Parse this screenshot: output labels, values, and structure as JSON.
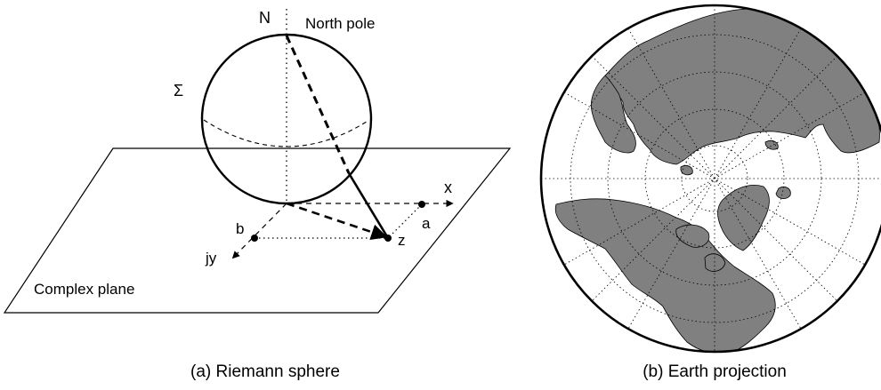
{
  "panel_a": {
    "label_N": "N",
    "label_north_pole": "North pole",
    "label_sigma": "Σ",
    "label_x": "x",
    "label_jy": "jy",
    "label_a": "a",
    "label_b": "b",
    "label_z": "z",
    "label_plane": "Complex plane",
    "caption": "(a) Riemann sphere"
  },
  "panel_b": {
    "caption": "(b) Earth projection",
    "land_color": "#808080",
    "ocean_color": "#ffffff"
  }
}
